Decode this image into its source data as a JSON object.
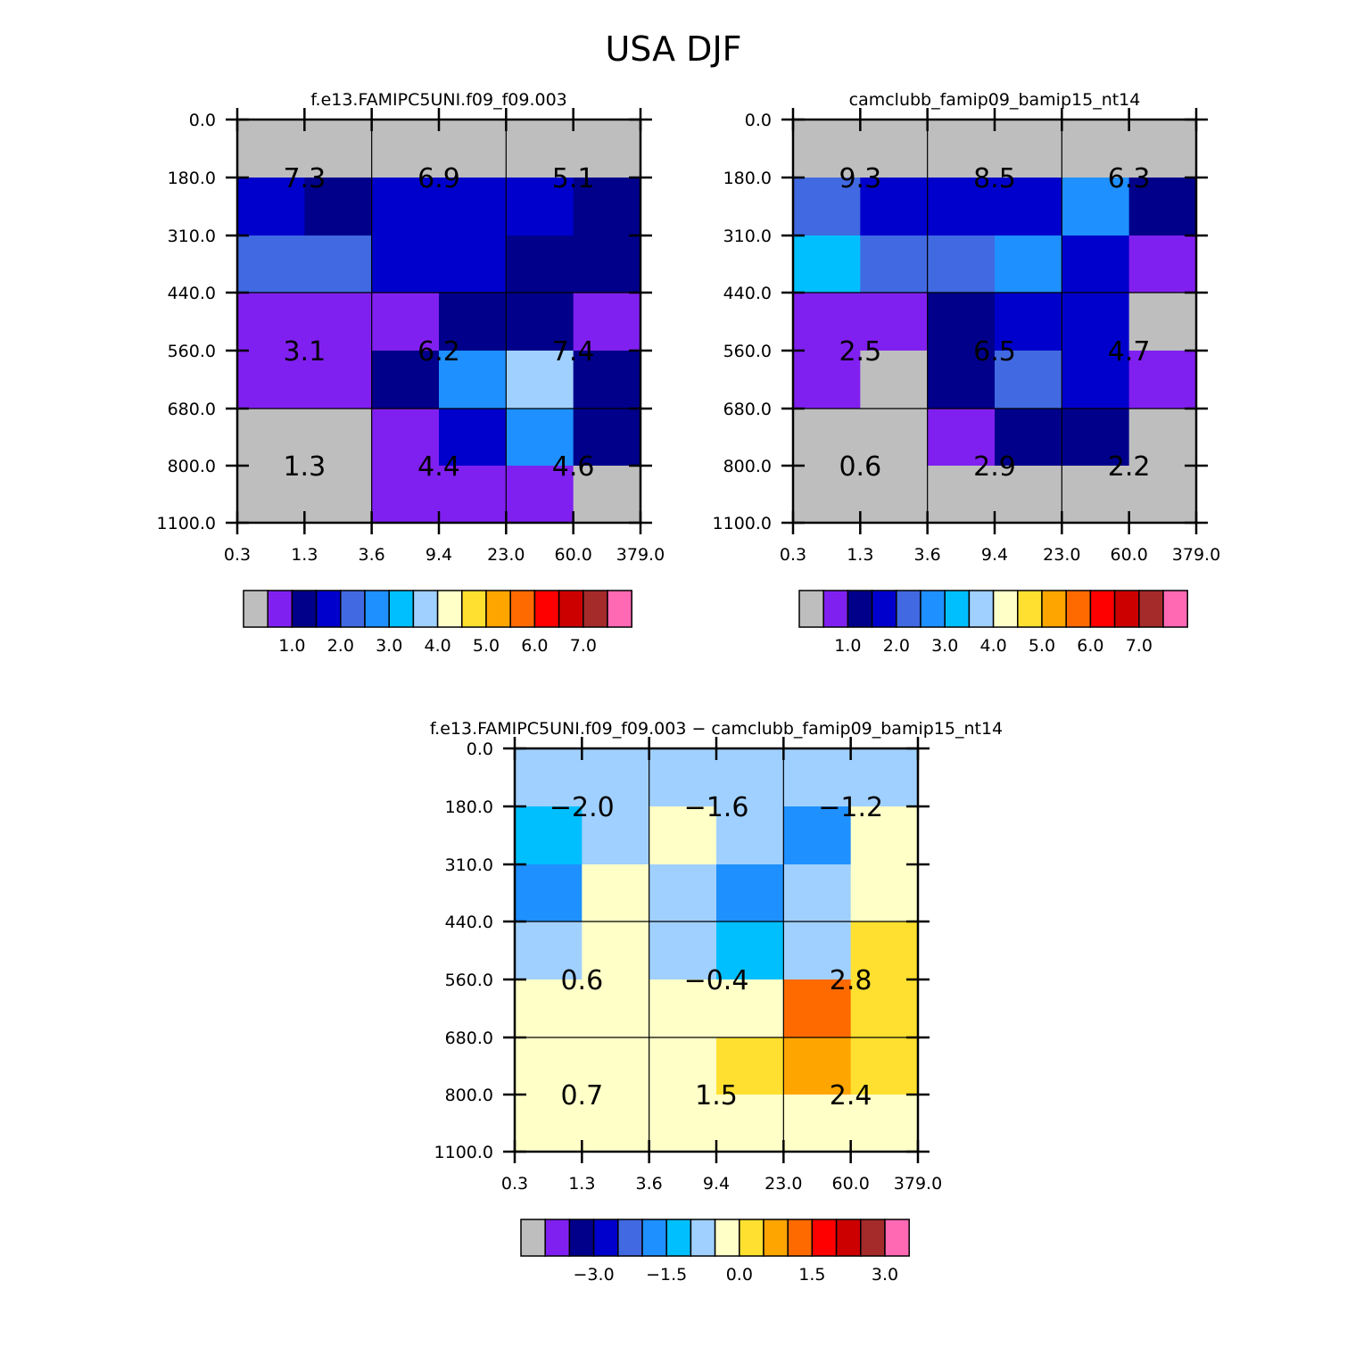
{
  "title": "USA DJF",
  "colors": {
    "abs_palette": [
      "#BEBEBE",
      "#8020F0",
      "#00008B",
      "#0000CD",
      "#4169E1",
      "#1E90FF",
      "#00BFFF",
      "#A0D0FF",
      "#FFFFC8",
      "#FFE030",
      "#FFA500",
      "#FF6A00",
      "#FF0000",
      "#CD0000",
      "#A52A2A",
      "#FF69B4"
    ],
    "diff_palette": [
      "#BEBEBE",
      "#8020F0",
      "#00008B",
      "#0000CD",
      "#4169E1",
      "#1E90FF",
      "#00BFFF",
      "#A0D0FF",
      "#FFFFC8",
      "#FFE030",
      "#FFA500",
      "#FF6A00",
      "#FF0000",
      "#CD0000",
      "#A52A2A",
      "#FF69B4"
    ]
  },
  "chart_data": [
    {
      "type": "heatmap",
      "title": "f.e13.FAMIPC5UNI.f09_f09.003",
      "xticks": [
        "0.3",
        "1.3",
        "3.6",
        "9.4",
        "23.0",
        "60.0",
        "379.0"
      ],
      "yticks": [
        "0.0",
        "180.0",
        "310.0",
        "440.0",
        "560.0",
        "680.0",
        "800.0",
        "1100.0"
      ],
      "cell_colors": [
        [
          0,
          0,
          0,
          0,
          0,
          0
        ],
        [
          3,
          2,
          3,
          3,
          3,
          2
        ],
        [
          4,
          4,
          3,
          3,
          2,
          2
        ],
        [
          1,
          1,
          1,
          2,
          2,
          1
        ],
        [
          1,
          1,
          2,
          5,
          7,
          2
        ],
        [
          0,
          0,
          1,
          3,
          5,
          2
        ],
        [
          0,
          0,
          1,
          1,
          1,
          0
        ]
      ],
      "cell_values": [
        [
          "7.3",
          "6.9",
          "5.1"
        ],
        [
          "3.1",
          "6.2",
          "7.4"
        ],
        [
          "1.3",
          "4.4",
          "4.6"
        ]
      ],
      "colorbar_labels": [
        "1.0",
        "2.0",
        "3.0",
        "4.0",
        "5.0",
        "6.0",
        "7.0"
      ]
    },
    {
      "type": "heatmap",
      "title": "camclubb_famip09_bamip15_nt14",
      "xticks": [
        "0.3",
        "1.3",
        "3.6",
        "9.4",
        "23.0",
        "60.0",
        "379.0"
      ],
      "yticks": [
        "0.0",
        "180.0",
        "310.0",
        "440.0",
        "560.0",
        "680.0",
        "800.0",
        "1100.0"
      ],
      "cell_colors": [
        [
          0,
          0,
          0,
          0,
          0,
          0
        ],
        [
          4,
          3,
          3,
          3,
          5,
          2
        ],
        [
          6,
          4,
          4,
          5,
          3,
          1
        ],
        [
          1,
          1,
          2,
          3,
          3,
          0
        ],
        [
          1,
          0,
          2,
          4,
          3,
          1
        ],
        [
          0,
          0,
          1,
          2,
          2,
          0
        ],
        [
          0,
          0,
          0,
          0,
          0,
          0
        ]
      ],
      "cell_values": [
        [
          "9.3",
          "8.5",
          "6.3"
        ],
        [
          "2.5",
          "6.5",
          "4.7"
        ],
        [
          "0.6",
          "2.9",
          "2.2"
        ]
      ],
      "colorbar_labels": [
        "1.0",
        "2.0",
        "3.0",
        "4.0",
        "5.0",
        "6.0",
        "7.0"
      ]
    },
    {
      "type": "heatmap",
      "title": "f.e13.FAMIPC5UNI.f09_f09.003 − camclubb_famip09_bamip15_nt14",
      "xticks": [
        "0.3",
        "1.3",
        "3.6",
        "9.4",
        "23.0",
        "60.0",
        "379.0"
      ],
      "yticks": [
        "0.0",
        "180.0",
        "310.0",
        "440.0",
        "560.0",
        "680.0",
        "800.0",
        "1100.0"
      ],
      "cell_colors": [
        [
          7,
          7,
          7,
          7,
          7,
          7
        ],
        [
          6,
          7,
          8,
          7,
          5,
          8
        ],
        [
          5,
          8,
          7,
          5,
          7,
          8
        ],
        [
          7,
          8,
          7,
          6,
          7,
          9
        ],
        [
          8,
          8,
          8,
          8,
          11,
          9
        ],
        [
          8,
          8,
          8,
          9,
          10,
          9
        ],
        [
          8,
          8,
          8,
          8,
          8,
          8
        ]
      ],
      "cell_values": [
        [
          "−2.0",
          "−1.6",
          "−1.2"
        ],
        [
          "0.6",
          "−0.4",
          "2.8"
        ],
        [
          "0.7",
          "1.5",
          "2.4"
        ]
      ],
      "colorbar_labels": [
        "−3.0",
        "−1.5",
        "0.0",
        "1.5",
        "3.0"
      ]
    }
  ]
}
